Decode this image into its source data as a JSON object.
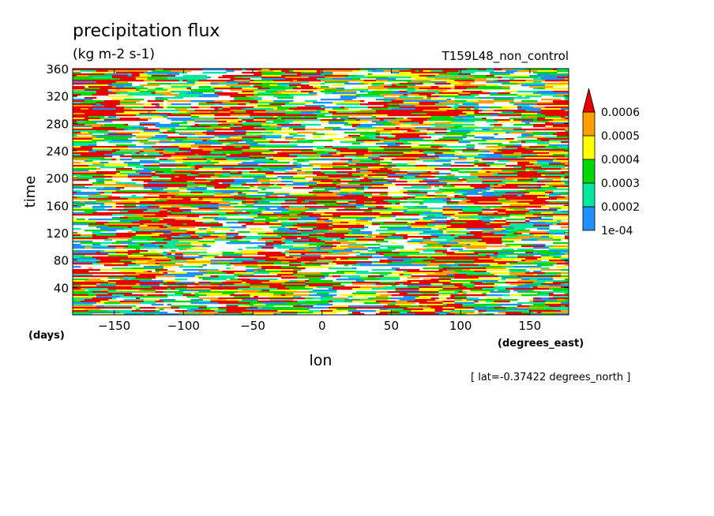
{
  "chart_data": {
    "type": "heatmap",
    "title": "precipitation flux",
    "subtitle": "(kg m-2 s-1)",
    "dataset_label": "T159L48_non_control",
    "xlabel": "lon",
    "x_units": "(degrees_east)",
    "ylabel": "time",
    "y_units": "(days)",
    "footnote": "[ lat=-0.37422 degrees_north ]",
    "xlim": [
      -180,
      178
    ],
    "ylim": [
      0,
      360
    ],
    "x_ticks": [
      -150,
      -100,
      -50,
      0,
      50,
      100,
      150
    ],
    "x_tick_labels": [
      "-150",
      "-100",
      "-50",
      "0",
      "50",
      "100",
      "150"
    ],
    "y_ticks": [
      40,
      80,
      120,
      160,
      200,
      240,
      280,
      320,
      360
    ],
    "y_tick_labels": [
      "40",
      "80",
      "120",
      "160",
      "200",
      "240",
      "280",
      "320",
      "360"
    ],
    "grid": false,
    "legend_position": "right",
    "colorbar": {
      "levels": [
        0.0001,
        0.0002,
        0.0003,
        0.0004,
        0.0005,
        0.0006
      ],
      "level_labels": [
        "1e-04",
        "0.0002",
        "0.0003",
        "0.0004",
        "0.0005",
        "0.0006"
      ],
      "colors": [
        "#1e90ff",
        "#00e8a0",
        "#00d800",
        "#ffff00",
        "#ffa000",
        "#e60000"
      ],
      "extend": "max",
      "below_min_color": "#ffffff"
    }
  }
}
